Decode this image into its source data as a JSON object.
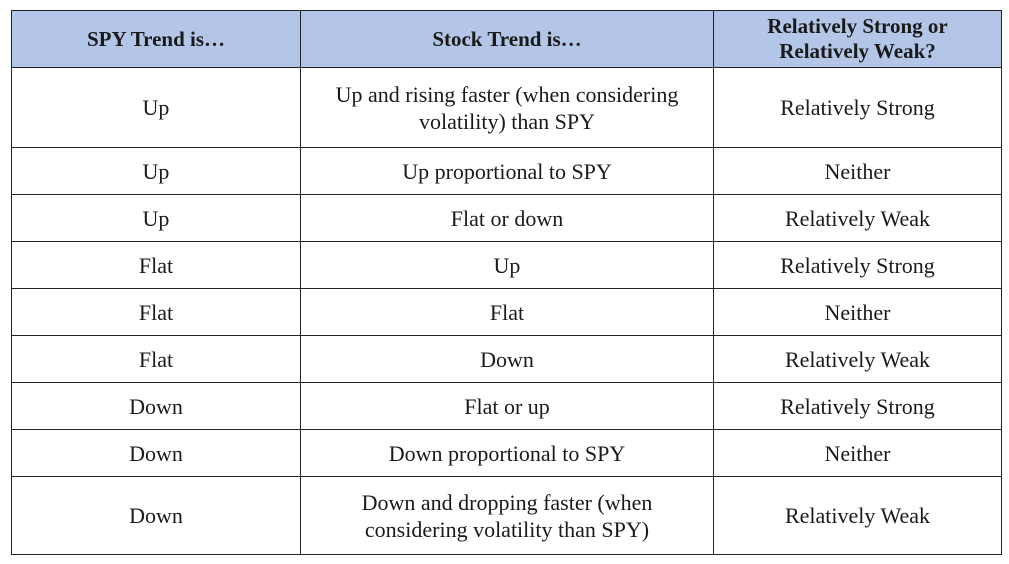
{
  "table": {
    "headers": [
      "SPY Trend is…",
      "Stock Trend is…",
      "Relatively Strong or Relatively Weak?"
    ],
    "rows": [
      [
        "Up",
        "Up and rising faster (when considering volatility) than SPY",
        "Relatively Strong"
      ],
      [
        "Up",
        "Up proportional to SPY",
        "Neither"
      ],
      [
        "Up",
        "Flat or down",
        "Relatively Weak"
      ],
      [
        "Flat",
        "Up",
        "Relatively Strong"
      ],
      [
        "Flat",
        "Flat",
        "Neither"
      ],
      [
        "Flat",
        "Down",
        "Relatively Weak"
      ],
      [
        "Down",
        "Flat or up",
        "Relatively Strong"
      ],
      [
        "Down",
        "Down proportional to SPY",
        "Neither"
      ],
      [
        "Down",
        "Down and dropping faster (when considering volatility than SPY)",
        "Relatively Weak"
      ]
    ]
  },
  "colors": {
    "header_background": "#b4c6e7",
    "border": "#222222",
    "text": "#1a1a1a"
  }
}
